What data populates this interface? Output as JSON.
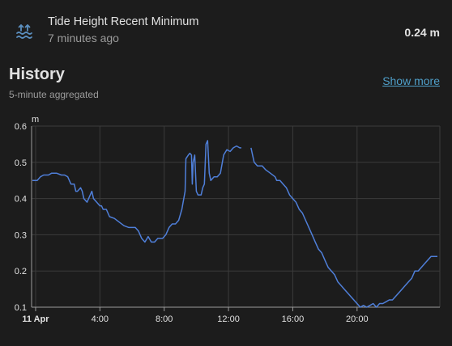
{
  "entity": {
    "name": "Tide Height Recent Minimum",
    "last_changed": "7 minutes ago",
    "state": "0.24 m",
    "icon": "waves-arrow-up-icon"
  },
  "history": {
    "title": "History",
    "show_more": "Show more",
    "subtitle": "5-minute aggregated"
  },
  "colors": {
    "background": "#1c1c1c",
    "line": "#4f7fd9",
    "link": "#4f9fc9",
    "icon": "#5b8fbf",
    "grid": "#3b3b3b"
  },
  "chart_data": {
    "type": "line",
    "title": "",
    "xlabel": "",
    "ylabel": "m",
    "ylim": [
      0.1,
      0.6
    ],
    "y_ticks": [
      "0.6",
      "0.5",
      "0.4",
      "0.3",
      "0.2",
      "0.1"
    ],
    "x_ticks": [
      "11 Apr",
      "4:00",
      "8:00",
      "12:00",
      "16:00",
      "20:00"
    ],
    "x_unit": "hours since 11 Apr 00:00 (axis ticks shown as clock times)",
    "grid": true,
    "legend": "none",
    "series": [
      {
        "segments": [
          [
            [
              -0.2,
              0.45
            ],
            [
              0.1,
              0.45
            ],
            [
              0.3,
              0.46
            ],
            [
              0.5,
              0.465
            ],
            [
              0.8,
              0.465
            ],
            [
              1.0,
              0.47
            ],
            [
              1.3,
              0.47
            ],
            [
              1.6,
              0.465
            ],
            [
              1.8,
              0.465
            ],
            [
              2.0,
              0.46
            ],
            [
              2.2,
              0.44
            ],
            [
              2.4,
              0.44
            ],
            [
              2.5,
              0.42
            ],
            [
              2.6,
              0.42
            ],
            [
              2.8,
              0.43
            ],
            [
              2.9,
              0.42
            ],
            [
              3.0,
              0.4
            ],
            [
              3.2,
              0.39
            ],
            [
              3.4,
              0.41
            ],
            [
              3.5,
              0.42
            ],
            [
              3.6,
              0.4
            ],
            [
              3.8,
              0.39
            ],
            [
              4.0,
              0.38
            ],
            [
              4.1,
              0.38
            ],
            [
              4.2,
              0.37
            ],
            [
              4.4,
              0.37
            ],
            [
              4.6,
              0.35
            ],
            [
              4.9,
              0.345
            ],
            [
              5.2,
              0.335
            ],
            [
              5.5,
              0.325
            ],
            [
              5.8,
              0.32
            ],
            [
              6.2,
              0.32
            ],
            [
              6.4,
              0.31
            ],
            [
              6.6,
              0.29
            ],
            [
              6.8,
              0.28
            ],
            [
              7.0,
              0.295
            ],
            [
              7.2,
              0.28
            ],
            [
              7.4,
              0.28
            ],
            [
              7.6,
              0.29
            ],
            [
              7.9,
              0.29
            ],
            [
              8.1,
              0.3
            ],
            [
              8.3,
              0.32
            ],
            [
              8.5,
              0.33
            ],
            [
              8.7,
              0.33
            ],
            [
              8.9,
              0.34
            ],
            [
              9.1,
              0.37
            ],
            [
              9.3,
              0.42
            ],
            [
              9.35,
              0.51
            ],
            [
              9.5,
              0.52
            ],
            [
              9.6,
              0.525
            ],
            [
              9.7,
              0.52
            ],
            [
              9.75,
              0.44
            ],
            [
              9.8,
              0.5
            ],
            [
              9.9,
              0.52
            ],
            [
              10.0,
              0.42
            ],
            [
              10.1,
              0.41
            ],
            [
              10.3,
              0.41
            ],
            [
              10.4,
              0.43
            ],
            [
              10.5,
              0.44
            ],
            [
              10.6,
              0.55
            ],
            [
              10.7,
              0.56
            ],
            [
              10.8,
              0.47
            ],
            [
              10.9,
              0.45
            ],
            [
              11.1,
              0.46
            ],
            [
              11.3,
              0.46
            ],
            [
              11.5,
              0.47
            ],
            [
              11.7,
              0.52
            ],
            [
              11.9,
              0.535
            ],
            [
              12.1,
              0.53
            ],
            [
              12.3,
              0.54
            ],
            [
              12.5,
              0.545
            ],
            [
              12.7,
              0.54
            ],
            [
              12.8,
              0.54
            ]
          ],
          [
            [
              13.4,
              0.54
            ],
            [
              13.5,
              0.52
            ],
            [
              13.6,
              0.5
            ],
            [
              13.8,
              0.49
            ],
            [
              14.1,
              0.49
            ],
            [
              14.3,
              0.48
            ],
            [
              14.6,
              0.47
            ],
            [
              14.9,
              0.46
            ],
            [
              15.0,
              0.45
            ],
            [
              15.2,
              0.45
            ],
            [
              15.4,
              0.44
            ],
            [
              15.6,
              0.43
            ],
            [
              15.8,
              0.41
            ],
            [
              16.0,
              0.4
            ],
            [
              16.2,
              0.39
            ],
            [
              16.4,
              0.37
            ],
            [
              16.6,
              0.36
            ],
            [
              16.8,
              0.34
            ],
            [
              17.0,
              0.32
            ],
            [
              17.2,
              0.3
            ],
            [
              17.4,
              0.28
            ],
            [
              17.6,
              0.26
            ],
            [
              17.8,
              0.25
            ],
            [
              18.0,
              0.23
            ],
            [
              18.2,
              0.21
            ],
            [
              18.4,
              0.2
            ],
            [
              18.6,
              0.19
            ],
            [
              18.8,
              0.17
            ],
            [
              19.0,
              0.16
            ],
            [
              19.2,
              0.15
            ],
            [
              19.4,
              0.14
            ],
            [
              19.6,
              0.13
            ],
            [
              19.8,
              0.12
            ],
            [
              20.0,
              0.11
            ],
            [
              20.2,
              0.1
            ],
            [
              20.4,
              0.105
            ],
            [
              20.6,
              0.1
            ],
            [
              20.8,
              0.105
            ],
            [
              21.0,
              0.11
            ],
            [
              21.2,
              0.1
            ],
            [
              21.4,
              0.11
            ],
            [
              21.6,
              0.11
            ],
            [
              21.8,
              0.115
            ],
            [
              22.0,
              0.12
            ],
            [
              22.2,
              0.12
            ],
            [
              22.4,
              0.13
            ],
            [
              22.6,
              0.14
            ],
            [
              22.8,
              0.15
            ],
            [
              23.0,
              0.16
            ],
            [
              23.2,
              0.17
            ],
            [
              23.4,
              0.18
            ],
            [
              23.6,
              0.2
            ],
            [
              23.8,
              0.2
            ],
            [
              24.0,
              0.21
            ],
            [
              24.2,
              0.22
            ],
            [
              24.4,
              0.23
            ],
            [
              24.6,
              0.24
            ],
            [
              24.8,
              0.24
            ],
            [
              25.0,
              0.24
            ]
          ]
        ]
      }
    ]
  }
}
